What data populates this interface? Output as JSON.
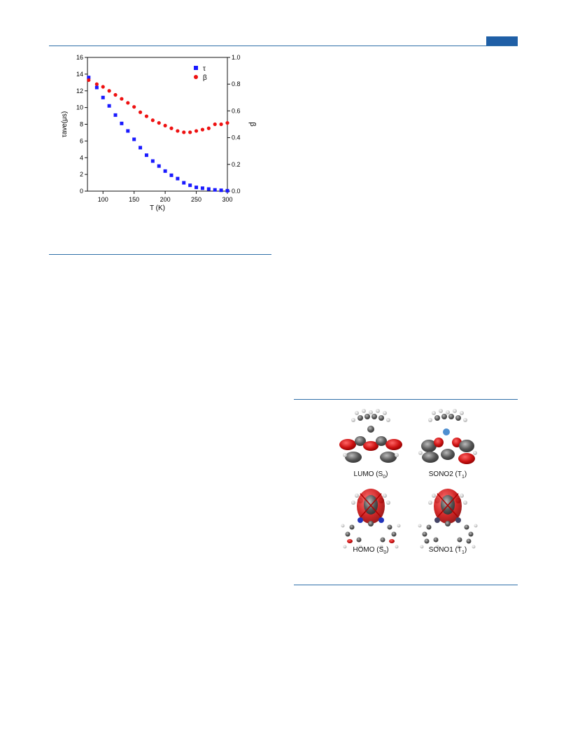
{
  "chart_data": {
    "type": "scatter",
    "xlabel": "T (K)",
    "ylabel_left": "τave(μs)",
    "ylabel_right": "β",
    "xlim": [
      75,
      300
    ],
    "ylim_left": [
      0,
      16
    ],
    "ylim_right": [
      0.0,
      1.0
    ],
    "xticks": [
      100,
      150,
      200,
      250,
      300
    ],
    "yticks_left": [
      0,
      2,
      4,
      6,
      8,
      10,
      12,
      14,
      16
    ],
    "yticks_right": [
      0.0,
      0.2,
      0.4,
      0.6,
      0.8,
      1.0
    ],
    "legend_position": "top-right",
    "series": [
      {
        "name": "τ",
        "axis": "left",
        "marker": "square",
        "color": "#1a1aff",
        "x": [
          77,
          90,
          100,
          110,
          120,
          130,
          140,
          150,
          160,
          170,
          180,
          190,
          200,
          210,
          220,
          230,
          240,
          250,
          260,
          270,
          280,
          290,
          300
        ],
        "y": [
          13.6,
          12.4,
          11.2,
          10.2,
          9.1,
          8.1,
          7.2,
          6.2,
          5.2,
          4.3,
          3.6,
          3.0,
          2.4,
          1.9,
          1.5,
          1.0,
          0.7,
          0.45,
          0.35,
          0.25,
          0.15,
          0.1,
          0.05
        ]
      },
      {
        "name": "β",
        "axis": "right",
        "marker": "circle",
        "color": "#ee1111",
        "x": [
          77,
          90,
          100,
          110,
          120,
          130,
          140,
          150,
          160,
          170,
          180,
          190,
          200,
          210,
          220,
          230,
          240,
          250,
          260,
          270,
          280,
          290,
          300
        ],
        "y": [
          0.83,
          0.8,
          0.78,
          0.75,
          0.72,
          0.69,
          0.66,
          0.63,
          0.59,
          0.56,
          0.53,
          0.51,
          0.49,
          0.47,
          0.45,
          0.44,
          0.44,
          0.45,
          0.46,
          0.47,
          0.5,
          0.5,
          0.51
        ]
      }
    ]
  },
  "figure2": {
    "labels": [
      {
        "main": "LUMO (S",
        "sub": "0",
        "end": ")"
      },
      {
        "main": "SONO2 (T",
        "sub": "1",
        "end": ")"
      },
      {
        "main": "HOMO (S",
        "sub": "0",
        "end": ")"
      },
      {
        "main": "SONO1 (T",
        "sub": "1",
        "end": ")"
      }
    ]
  },
  "colors": {
    "rule": "#2f6fa8",
    "header_tab": "#1f5fa6",
    "orbital_red": "#cc1111",
    "atom_gray": "#555555"
  }
}
